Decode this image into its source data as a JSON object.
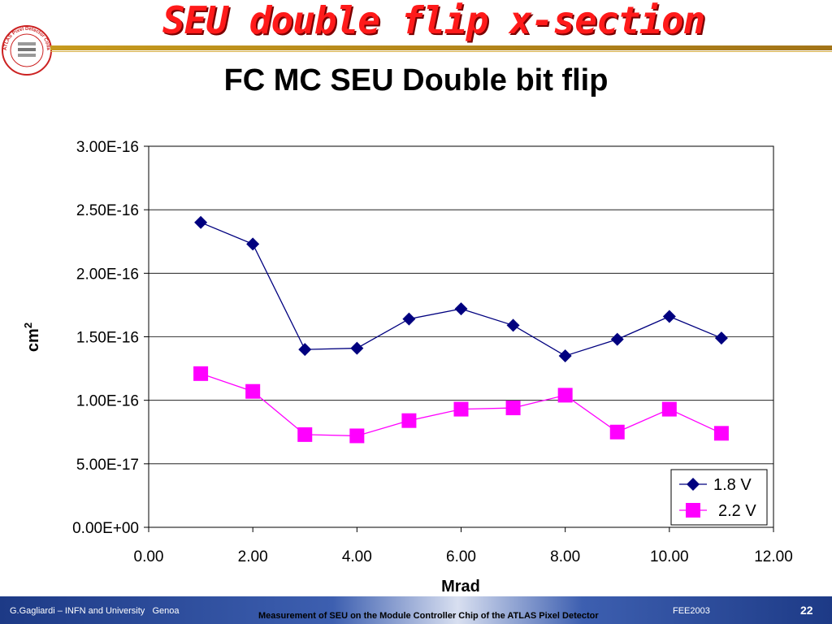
{
  "slide": {
    "title": "SEU double flip x-section",
    "logo_text": "ATLAS Pixel Detector Collaboration"
  },
  "footer": {
    "author": "G.Gagliardi – INFN and University   Genoa",
    "center": "Measurement of SEU on the Module Controller Chip of the ATLAS Pixel Detector",
    "conference": "FEE2003",
    "page": "22"
  },
  "colors": {
    "title_red": "#ff1a1a",
    "series_1": "#00007f",
    "series_2": "#ff00ff",
    "footer_blue": "#1d3a86"
  },
  "chart_data": {
    "type": "scatter",
    "title": "FC MC SEU Double bit flip",
    "xlabel": "Mrad",
    "ylabel": "cm",
    "ylabel_superscript": "2",
    "xlim": [
      0,
      12
    ],
    "ylim": [
      0,
      3e-16
    ],
    "x_ticks": [
      "0.00",
      "2.00",
      "4.00",
      "6.00",
      "8.00",
      "10.00",
      "12.00"
    ],
    "y_ticks": [
      "0.00E+00",
      "5.00E-17",
      "1.00E-16",
      "1.50E-16",
      "2.00E-16",
      "2.50E-16",
      "3.00E-16"
    ],
    "grid": "horizontal",
    "legend_position": "bottom-right",
    "series": [
      {
        "name": "1.8 V",
        "marker": "diamond",
        "color": "#00007f",
        "x": [
          1,
          2,
          3,
          4,
          5,
          6,
          7,
          8,
          9,
          10,
          11
        ],
        "y": [
          2.4e-16,
          2.23e-16,
          1.4e-16,
          1.41e-16,
          1.64e-16,
          1.72e-16,
          1.59e-16,
          1.35e-16,
          1.48e-16,
          1.66e-16,
          1.49e-16
        ]
      },
      {
        "name": "2.2 V",
        "marker": "square",
        "color": "#ff00ff",
        "x": [
          1,
          2,
          3,
          4,
          5,
          6,
          7,
          8,
          9,
          10,
          11
        ],
        "y": [
          1.21e-16,
          1.07e-16,
          7.3e-17,
          7.2e-17,
          8.4e-17,
          9.3e-17,
          9.4e-17,
          1.04e-16,
          7.5e-17,
          9.3e-17,
          7.4e-17
        ]
      }
    ]
  }
}
